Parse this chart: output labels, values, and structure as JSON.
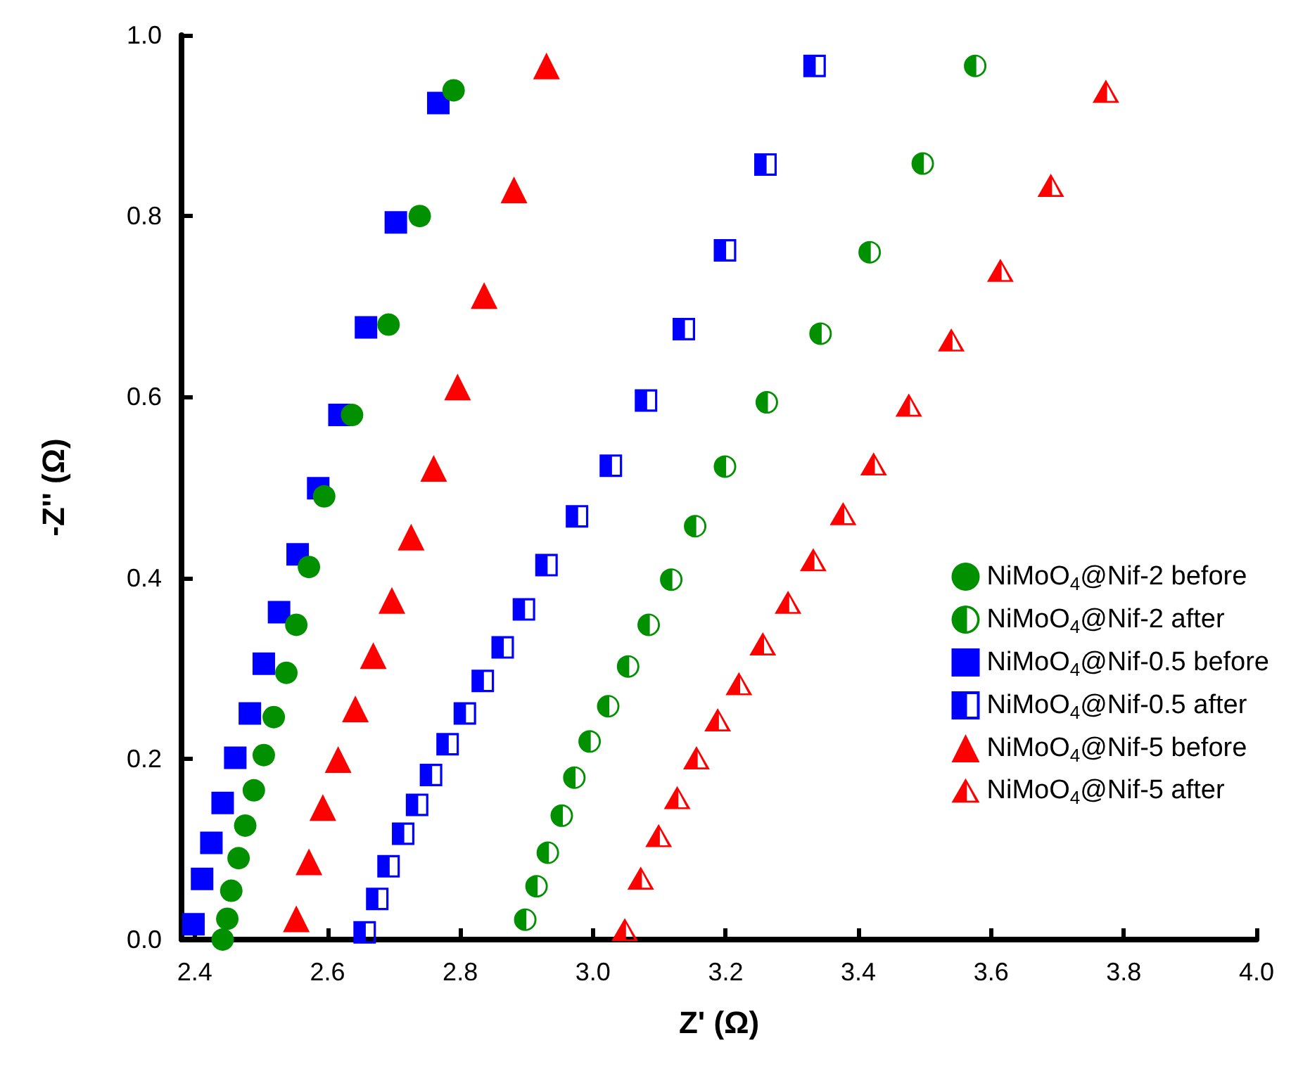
{
  "chart_data": {
    "type": "scatter",
    "xlabel": "Z' (Ω)",
    "ylabel": "-Z'' (Ω)",
    "xlim": [
      2.38,
      4.0
    ],
    "ylim": [
      0,
      1.0
    ],
    "xticks": [
      {
        "value": 2.4,
        "label": "2.4"
      },
      {
        "value": 2.6,
        "label": "2.6"
      },
      {
        "value": 2.8,
        "label": "2.8"
      },
      {
        "value": 3.0,
        "label": "3.0"
      },
      {
        "value": 3.2,
        "label": "3.2"
      },
      {
        "value": 3.4,
        "label": "3.4"
      },
      {
        "value": 3.6,
        "label": "3.6"
      },
      {
        "value": 3.8,
        "label": "3.8"
      },
      {
        "value": 4.0,
        "label": "4.0"
      }
    ],
    "yticks": [
      {
        "value": 0,
        "label": "0.0"
      },
      {
        "value": 0.2,
        "label": "0.2"
      },
      {
        "value": 0.4,
        "label": "0.4"
      },
      {
        "value": 0.6,
        "label": "0.6"
      },
      {
        "value": 0.8,
        "label": "0.8"
      },
      {
        "value": 1.0,
        "label": "1.0"
      }
    ],
    "grid": false,
    "legend": "right",
    "series": [
      {
        "name": "NiMoO$_{4}$@Nif-2 before",
        "color": "#009000",
        "marker": "circle",
        "x": [
          2.79,
          2.739,
          2.692,
          2.637,
          2.595,
          2.572,
          2.553,
          2.538,
          2.519,
          2.504,
          2.489,
          2.476,
          2.466,
          2.455,
          2.449,
          2.442
        ],
        "values": [
          0.939,
          0.8,
          0.68,
          0.58,
          0.49,
          0.412,
          0.348,
          0.295,
          0.246,
          0.204,
          0.165,
          0.126,
          0.09,
          0.054,
          0.023,
          0.0
        ]
      },
      {
        "name": "NiMoO$_{4}$@Nif-2 after",
        "color": "#009000",
        "marker": "circle",
        "x": [
          3.576,
          3.497,
          3.417,
          3.343,
          3.262,
          3.199,
          3.154,
          3.118,
          3.084,
          3.053,
          3.023,
          2.995,
          2.972,
          2.953,
          2.932,
          2.915,
          2.898
        ],
        "values": [
          0.966,
          0.858,
          0.76,
          0.67,
          0.594,
          0.523,
          0.457,
          0.398,
          0.348,
          0.302,
          0.258,
          0.219,
          0.179,
          0.137,
          0.096,
          0.059,
          0.022
        ]
      },
      {
        "name": "NiMoO$_{4}$@Nif-0.5 before",
        "color": "#0000ff",
        "marker": "square",
        "x": [
          2.767,
          2.703,
          2.658,
          2.618,
          2.586,
          2.555,
          2.527,
          2.504,
          2.483,
          2.461,
          2.442,
          2.425,
          2.411,
          2.398
        ],
        "values": [
          0.925,
          0.793,
          0.677,
          0.58,
          0.499,
          0.426,
          0.362,
          0.305,
          0.25,
          0.201,
          0.151,
          0.107,
          0.067,
          0.017
        ]
      },
      {
        "name": "NiMoO$_{4}$@Nif-0.5 after",
        "color": "#0000ff",
        "marker": "square",
        "x": [
          3.334,
          3.26,
          3.199,
          3.137,
          3.08,
          3.027,
          2.976,
          2.93,
          2.896,
          2.864,
          2.834,
          2.807,
          2.781,
          2.756,
          2.735,
          2.714,
          2.692,
          2.675,
          2.656
        ],
        "values": [
          0.966,
          0.857,
          0.762,
          0.675,
          0.596,
          0.524,
          0.468,
          0.414,
          0.365,
          0.323,
          0.286,
          0.25,
          0.216,
          0.182,
          0.149,
          0.117,
          0.081,
          0.045,
          0.008
        ]
      },
      {
        "name": "NiMoO$_{4}$@Nif-5 before",
        "color": "#ff0000",
        "marker": "triangle",
        "x": [
          2.93,
          2.881,
          2.836,
          2.796,
          2.76,
          2.726,
          2.697,
          2.669,
          2.642,
          2.616,
          2.593,
          2.572,
          2.553
        ],
        "values": [
          0.966,
          0.829,
          0.712,
          0.611,
          0.521,
          0.445,
          0.375,
          0.314,
          0.255,
          0.199,
          0.146,
          0.086,
          0.023
        ]
      },
      {
        "name": "NiMoO$_{4}$@Nif-5 after",
        "color": "#ff0000",
        "marker": "triangle",
        "x": [
          3.773,
          3.69,
          3.614,
          3.54,
          3.476,
          3.423,
          3.377,
          3.332,
          3.294,
          3.256,
          3.22,
          3.188,
          3.156,
          3.127,
          3.099,
          3.072,
          3.048
        ],
        "values": [
          0.938,
          0.834,
          0.74,
          0.663,
          0.591,
          0.526,
          0.471,
          0.42,
          0.373,
          0.327,
          0.283,
          0.243,
          0.201,
          0.157,
          0.115,
          0.068,
          0.011
        ]
      }
    ]
  }
}
